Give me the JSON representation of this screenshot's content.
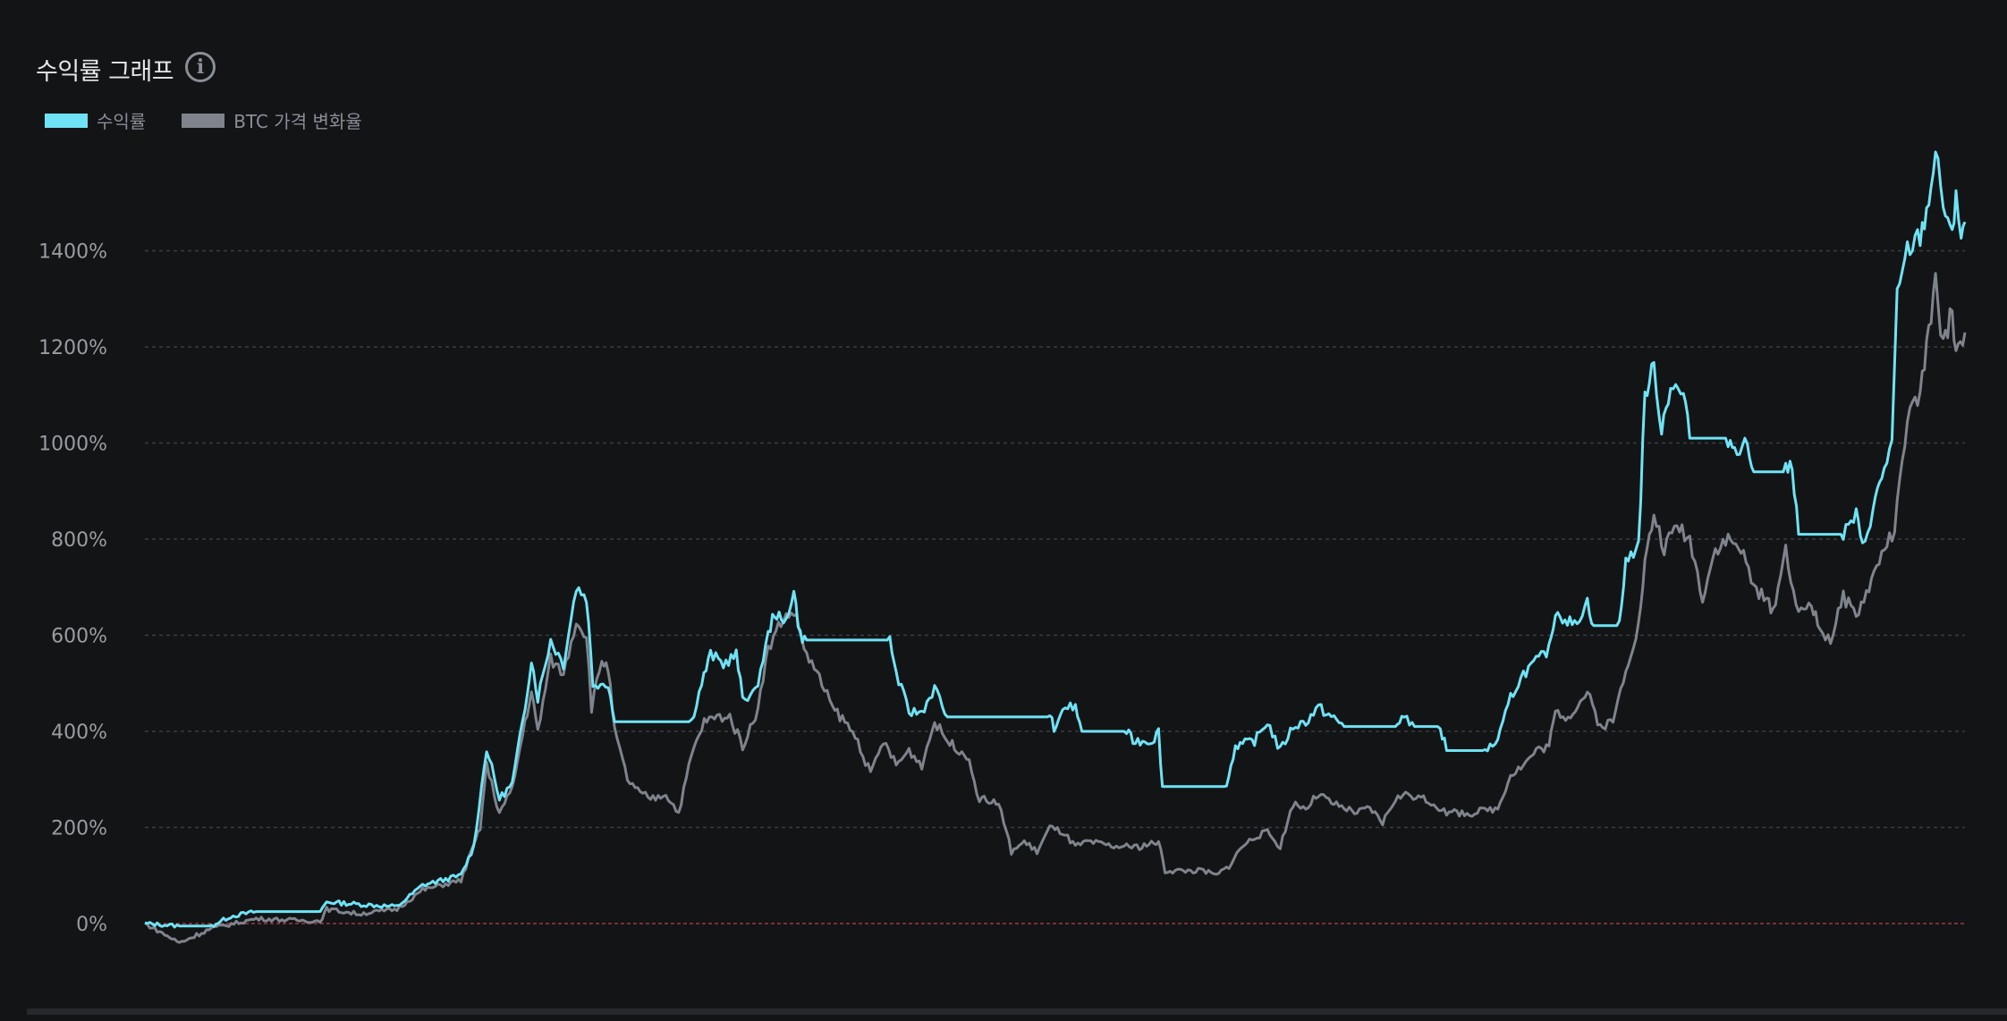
{
  "header": {
    "title": "수익률 그래프",
    "info_icon": "info-circle-icon"
  },
  "colors": {
    "returns": "#6fe3f5",
    "btc": "#7f838c",
    "zero_line": "#7a3035",
    "grid": "#3a3d42"
  },
  "chart_data": {
    "type": "line",
    "title": "수익률 그래프",
    "xlabel": "",
    "ylabel": "",
    "ylim": [
      -60,
      1680
    ],
    "yticks": [
      "0%",
      "200%",
      "400%",
      "600%",
      "800%",
      "1000%",
      "1200%",
      "1400%"
    ],
    "ytick_values": [
      0,
      200,
      400,
      600,
      800,
      1000,
      1200,
      1400
    ],
    "grid": true,
    "legend": "top-left",
    "series": [
      {
        "name": "수익률",
        "color": "#6fe3f5",
        "points": [
          [
            0,
            0
          ],
          [
            27,
            -5
          ],
          [
            52,
            -5
          ],
          [
            67,
            15
          ],
          [
            87,
            25
          ],
          [
            137,
            25
          ],
          [
            142,
            45
          ],
          [
            167,
            40
          ],
          [
            197,
            35
          ],
          [
            217,
            80
          ],
          [
            247,
            100
          ],
          [
            257,
            160
          ],
          [
            267,
            365
          ],
          [
            277,
            260
          ],
          [
            287,
            290
          ],
          [
            297,
            450
          ],
          [
            302,
            550
          ],
          [
            307,
            470
          ],
          [
            317,
            590
          ],
          [
            327,
            540
          ],
          [
            337,
            700
          ],
          [
            345,
            680
          ],
          [
            350,
            500
          ],
          [
            362,
            500
          ],
          [
            367,
            420
          ],
          [
            427,
            420
          ],
          [
            435,
            500
          ],
          [
            442,
            560
          ],
          [
            452,
            540
          ],
          [
            462,
            560
          ],
          [
            467,
            470
          ],
          [
            477,
            480
          ],
          [
            487,
            600
          ],
          [
            492,
            650
          ],
          [
            499,
            620
          ],
          [
            507,
            690
          ],
          [
            512,
            600
          ],
          [
            517,
            590
          ],
          [
            582,
            590
          ],
          [
            587,
            520
          ],
          [
            597,
            440
          ],
          [
            607,
            440
          ],
          [
            617,
            490
          ],
          [
            627,
            430
          ],
          [
            707,
            430
          ],
          [
            712,
            400
          ],
          [
            717,
            450
          ],
          [
            727,
            450
          ],
          [
            732,
            400
          ],
          [
            767,
            400
          ],
          [
            772,
            380
          ],
          [
            787,
            380
          ],
          [
            792,
            400
          ],
          [
            795,
            285
          ],
          [
            845,
            285
          ],
          [
            852,
            370
          ],
          [
            867,
            380
          ],
          [
            877,
            420
          ],
          [
            887,
            360
          ],
          [
            897,
            410
          ],
          [
            907,
            420
          ],
          [
            917,
            450
          ],
          [
            927,
            430
          ],
          [
            937,
            410
          ],
          [
            977,
            410
          ],
          [
            982,
            430
          ],
          [
            992,
            410
          ],
          [
            1012,
            410
          ],
          [
            1017,
            360
          ],
          [
            1047,
            360
          ],
          [
            1057,
            380
          ],
          [
            1067,
            470
          ],
          [
            1077,
            520
          ],
          [
            1097,
            570
          ],
          [
            1102,
            650
          ],
          [
            1117,
            620
          ],
          [
            1127,
            670
          ],
          [
            1132,
            620
          ],
          [
            1152,
            620
          ],
          [
            1157,
            750
          ],
          [
            1167,
            790
          ],
          [
            1172,
            1100
          ],
          [
            1179,
            1160
          ],
          [
            1185,
            1030
          ],
          [
            1192,
            1120
          ],
          [
            1202,
            1100
          ],
          [
            1207,
            1010
          ],
          [
            1237,
            1010
          ],
          [
            1242,
            990
          ],
          [
            1252,
            1000
          ],
          [
            1257,
            940
          ],
          [
            1282,
            940
          ],
          [
            1287,
            960
          ],
          [
            1292,
            810
          ],
          [
            1327,
            810
          ],
          [
            1337,
            850
          ],
          [
            1342,
            780
          ],
          [
            1352,
            880
          ],
          [
            1357,
            930
          ],
          [
            1365,
            1000
          ],
          [
            1369,
            1300
          ],
          [
            1377,
            1400
          ],
          [
            1387,
            1430
          ],
          [
            1392,
            1480
          ],
          [
            1399,
            1600
          ],
          [
            1405,
            1500
          ],
          [
            1412,
            1420
          ],
          [
            1415,
            1530
          ],
          [
            1419,
            1430
          ],
          [
            1422,
            1460
          ]
        ]
      },
      {
        "name": "BTC 가격 변화율",
        "color": "#7f838c",
        "points": [
          [
            0,
            0
          ],
          [
            27,
            -40
          ],
          [
            52,
            -10
          ],
          [
            87,
            10
          ],
          [
            137,
            5
          ],
          [
            142,
            30
          ],
          [
            167,
            20
          ],
          [
            197,
            30
          ],
          [
            217,
            70
          ],
          [
            247,
            90
          ],
          [
            262,
            200
          ],
          [
            267,
            330
          ],
          [
            277,
            230
          ],
          [
            287,
            280
          ],
          [
            297,
            420
          ],
          [
            302,
            480
          ],
          [
            307,
            400
          ],
          [
            317,
            550
          ],
          [
            327,
            520
          ],
          [
            337,
            630
          ],
          [
            345,
            600
          ],
          [
            349,
            450
          ],
          [
            357,
            550
          ],
          [
            362,
            530
          ],
          [
            367,
            400
          ],
          [
            377,
            300
          ],
          [
            387,
            270
          ],
          [
            397,
            260
          ],
          [
            407,
            270
          ],
          [
            417,
            230
          ],
          [
            427,
            350
          ],
          [
            437,
            420
          ],
          [
            447,
            430
          ],
          [
            457,
            430
          ],
          [
            467,
            370
          ],
          [
            477,
            430
          ],
          [
            487,
            570
          ],
          [
            497,
            630
          ],
          [
            507,
            650
          ],
          [
            517,
            560
          ],
          [
            527,
            510
          ],
          [
            537,
            450
          ],
          [
            547,
            420
          ],
          [
            557,
            380
          ],
          [
            567,
            310
          ],
          [
            577,
            380
          ],
          [
            587,
            330
          ],
          [
            597,
            360
          ],
          [
            607,
            330
          ],
          [
            617,
            420
          ],
          [
            627,
            380
          ],
          [
            642,
            350
          ],
          [
            652,
            260
          ],
          [
            667,
            250
          ],
          [
            677,
            150
          ],
          [
            687,
            170
          ],
          [
            697,
            150
          ],
          [
            707,
            200
          ],
          [
            717,
            190
          ],
          [
            727,
            160
          ],
          [
            737,
            170
          ],
          [
            757,
            160
          ],
          [
            777,
            160
          ],
          [
            792,
            170
          ],
          [
            797,
            110
          ],
          [
            807,
            110
          ],
          [
            827,
            110
          ],
          [
            837,
            100
          ],
          [
            847,
            120
          ],
          [
            857,
            160
          ],
          [
            867,
            180
          ],
          [
            877,
            190
          ],
          [
            887,
            160
          ],
          [
            897,
            250
          ],
          [
            907,
            240
          ],
          [
            917,
            270
          ],
          [
            927,
            250
          ],
          [
            947,
            230
          ],
          [
            957,
            240
          ],
          [
            967,
            210
          ],
          [
            977,
            260
          ],
          [
            987,
            270
          ],
          [
            997,
            260
          ],
          [
            1007,
            250
          ],
          [
            1017,
            230
          ],
          [
            1037,
            230
          ],
          [
            1057,
            240
          ],
          [
            1067,
            310
          ],
          [
            1077,
            330
          ],
          [
            1087,
            360
          ],
          [
            1097,
            370
          ],
          [
            1102,
            440
          ],
          [
            1112,
            430
          ],
          [
            1127,
            480
          ],
          [
            1137,
            410
          ],
          [
            1147,
            420
          ],
          [
            1157,
            530
          ],
          [
            1167,
            620
          ],
          [
            1172,
            750
          ],
          [
            1179,
            850
          ],
          [
            1187,
            780
          ],
          [
            1197,
            830
          ],
          [
            1207,
            800
          ],
          [
            1217,
            680
          ],
          [
            1227,
            780
          ],
          [
            1237,
            800
          ],
          [
            1247,
            780
          ],
          [
            1257,
            700
          ],
          [
            1267,
            670
          ],
          [
            1272,
            650
          ],
          [
            1282,
            780
          ],
          [
            1292,
            640
          ],
          [
            1302,
            670
          ],
          [
            1307,
            620
          ],
          [
            1317,
            590
          ],
          [
            1327,
            680
          ],
          [
            1337,
            640
          ],
          [
            1347,
            700
          ],
          [
            1357,
            770
          ],
          [
            1367,
            820
          ],
          [
            1377,
            1050
          ],
          [
            1387,
            1100
          ],
          [
            1392,
            1200
          ],
          [
            1399,
            1330
          ],
          [
            1405,
            1200
          ],
          [
            1412,
            1280
          ],
          [
            1415,
            1190
          ],
          [
            1422,
            1230
          ]
        ]
      }
    ]
  },
  "legend": {
    "items": [
      {
        "label": "수익률"
      },
      {
        "label": "BTC 가격 변화율"
      }
    ]
  }
}
